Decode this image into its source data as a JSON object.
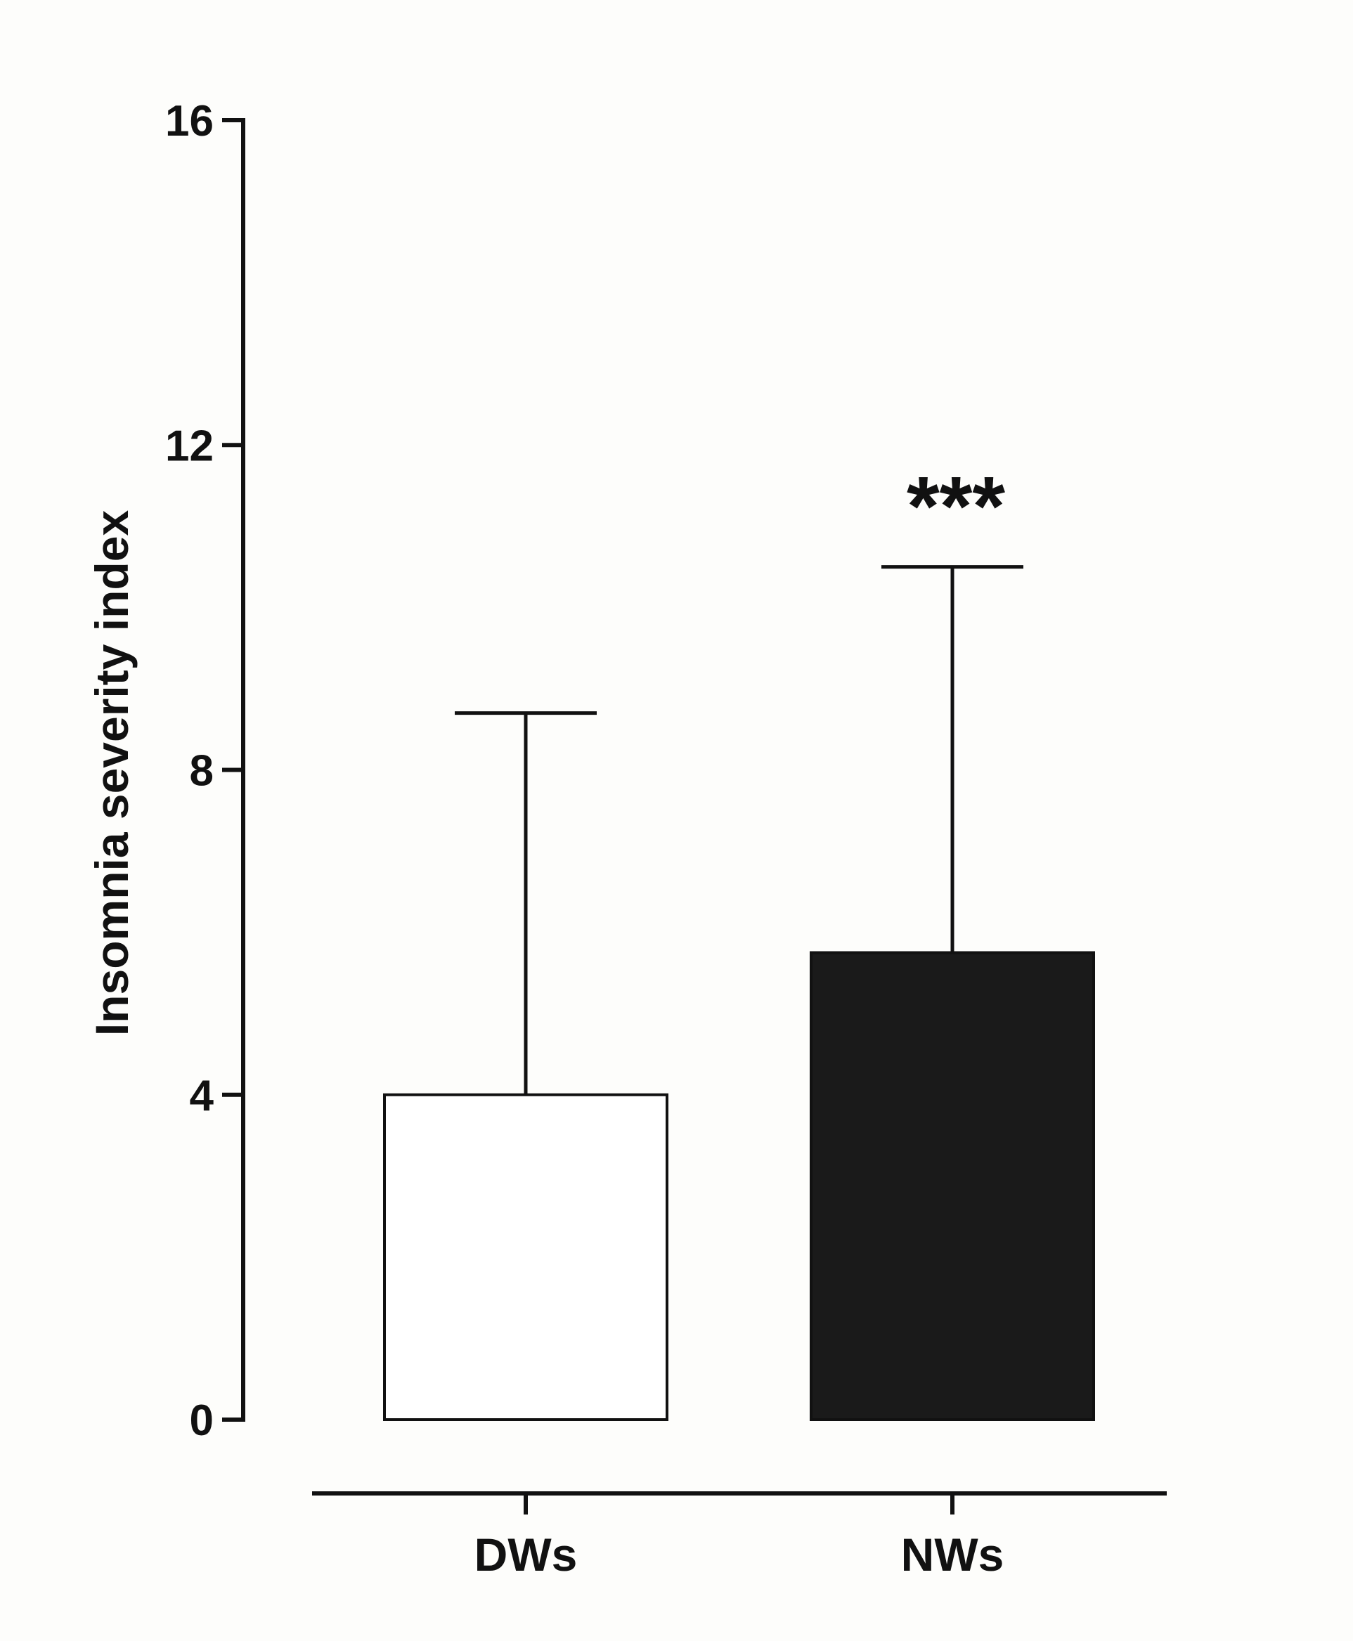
{
  "chart_data": {
    "type": "bar",
    "ylabel": "Insomnia severity index",
    "xlabel": "",
    "ylim": [
      0,
      16
    ],
    "yticks": [
      0,
      4,
      8,
      12,
      16
    ],
    "categories": [
      "DWs",
      "NWs"
    ],
    "values": [
      4.0,
      5.75
    ],
    "error_upper": [
      8.7,
      10.5
    ],
    "bar_fill_colors": [
      "#ffffff",
      "#1a1a1a"
    ],
    "annotations": [
      {
        "category": "NWs",
        "text": "***"
      }
    ],
    "grid": false,
    "legend": "none"
  }
}
